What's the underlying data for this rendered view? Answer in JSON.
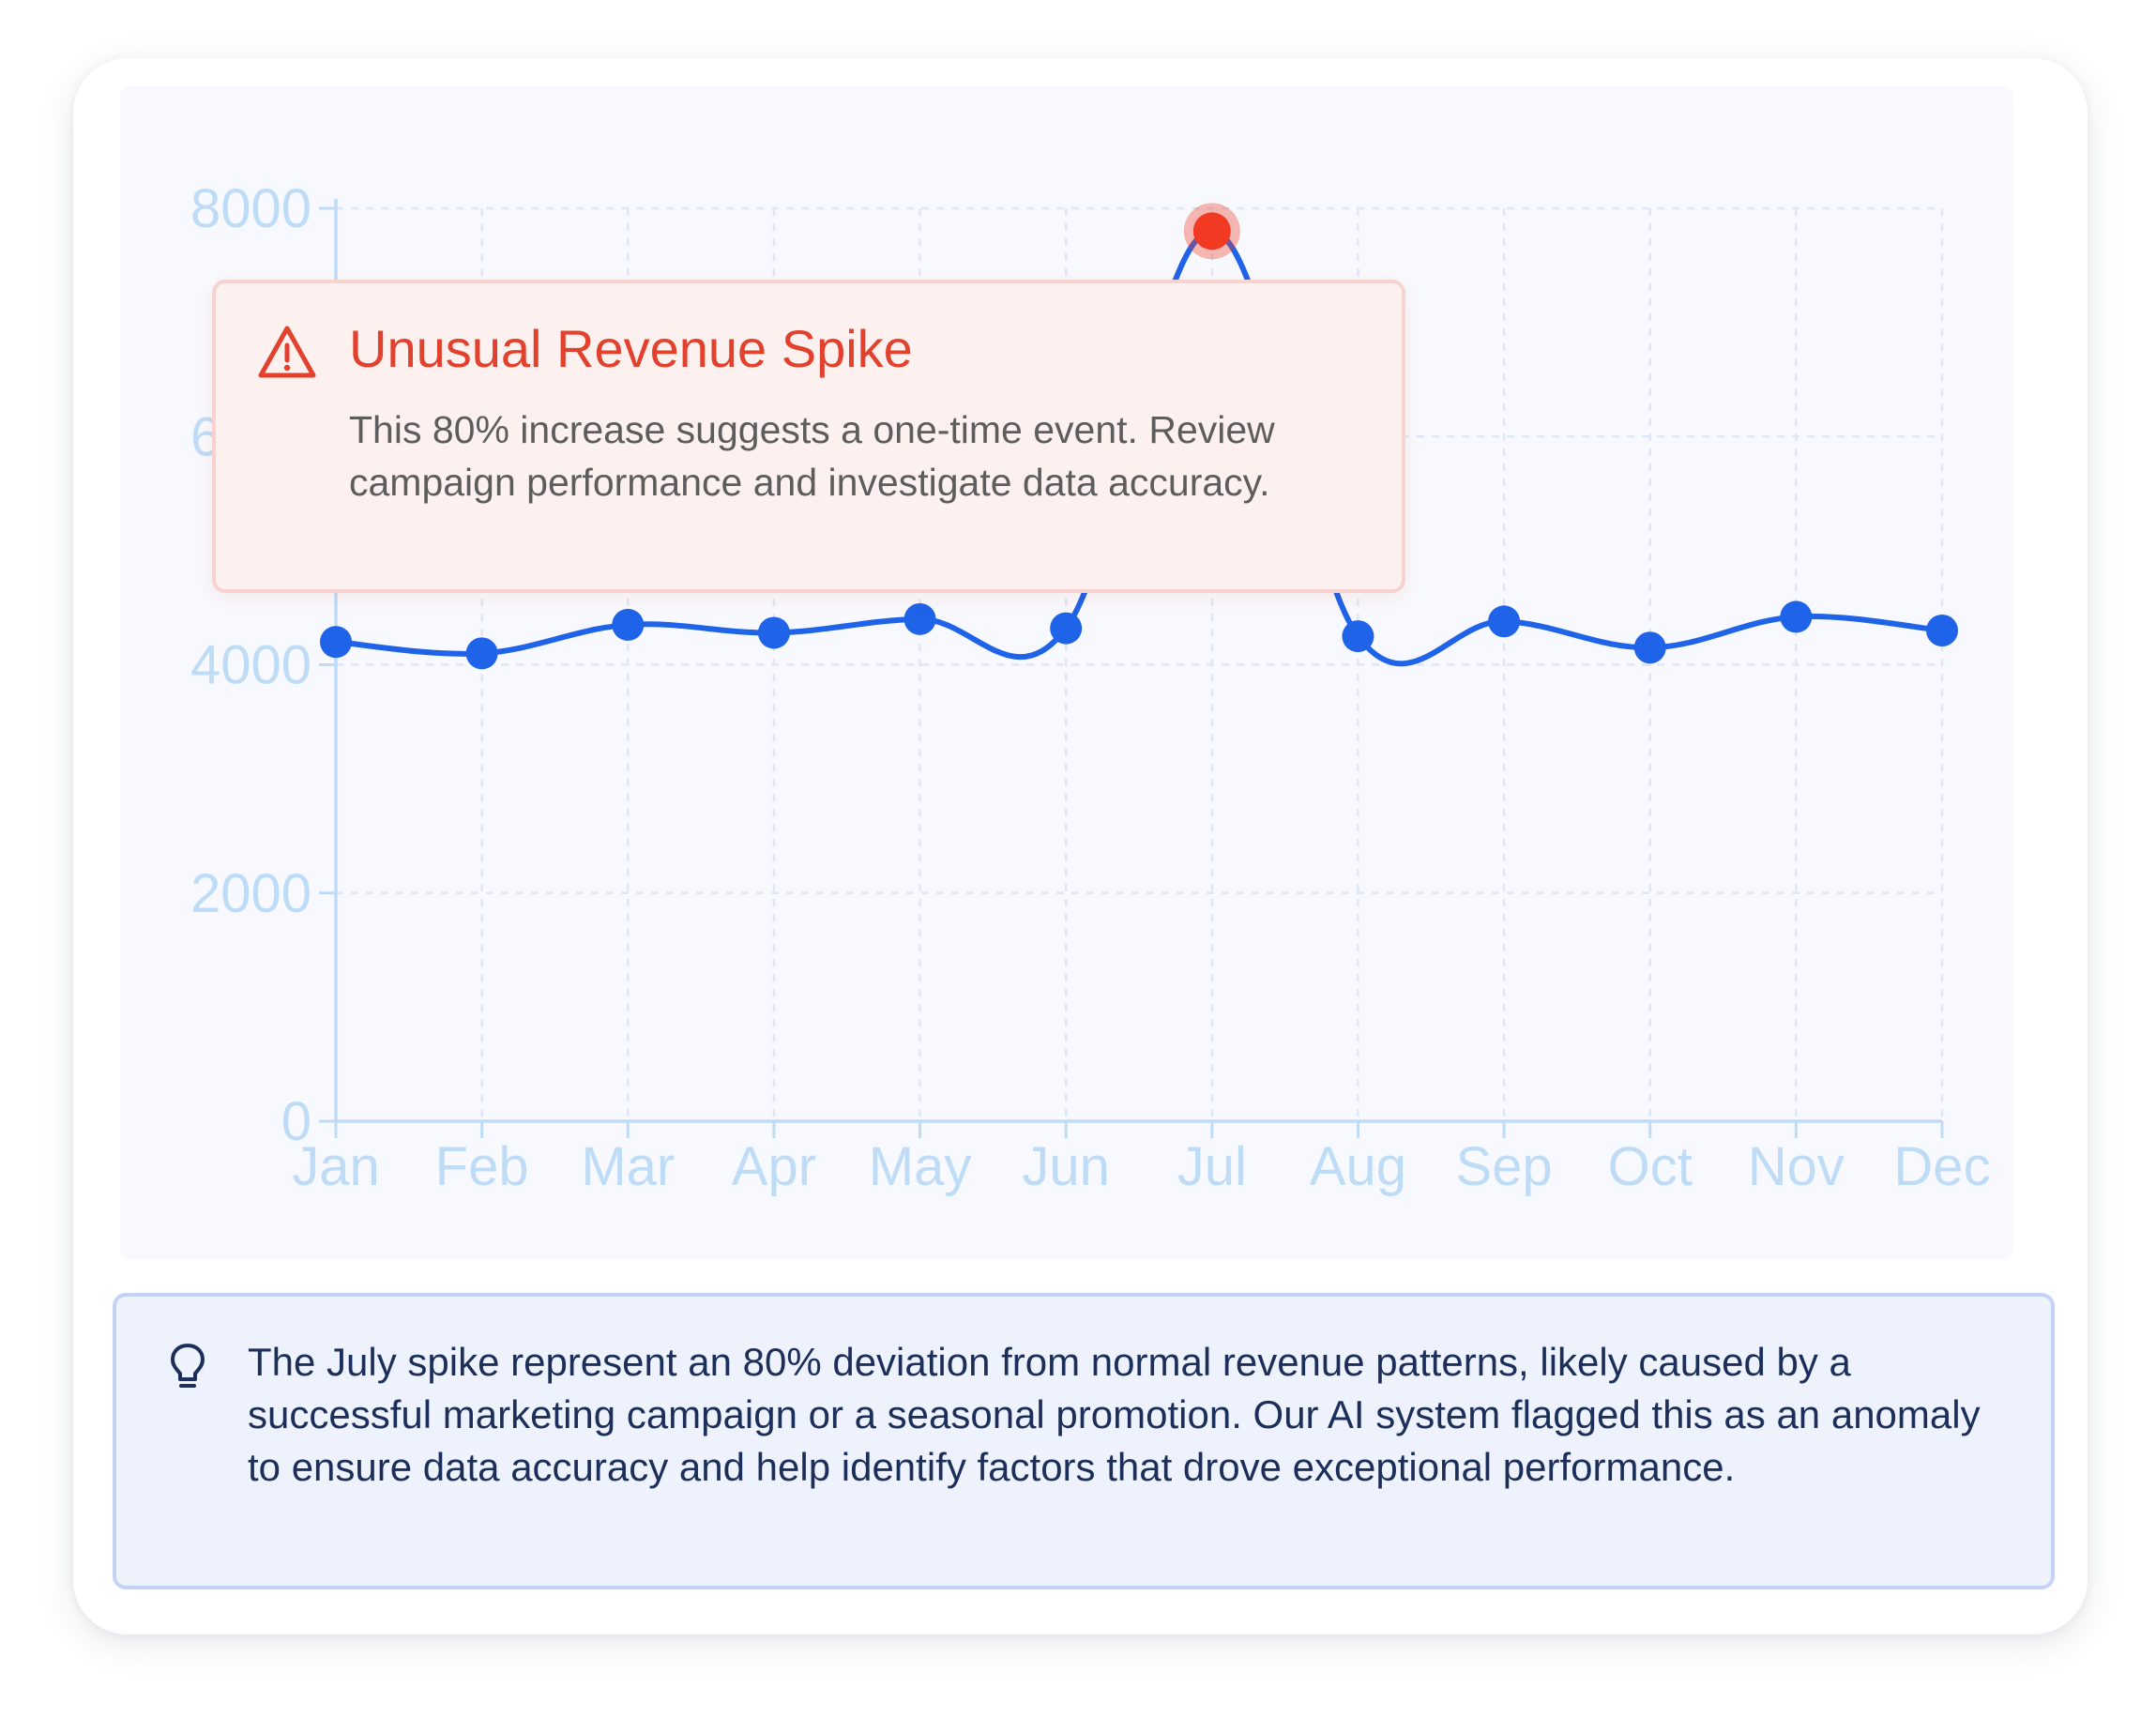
{
  "chart_data": {
    "type": "line",
    "categories": [
      "Jan",
      "Feb",
      "Mar",
      "Apr",
      "May",
      "Jun",
      "Jul",
      "Aug",
      "Sep",
      "Oct",
      "Nov",
      "Dec"
    ],
    "series": [
      {
        "values": [
          4200,
          4100,
          4350,
          4280,
          4400,
          4320,
          7800,
          4250,
          4380,
          4150,
          4420,
          4300
        ]
      }
    ],
    "yticks": [
      0,
      2000,
      4000,
      6000,
      8000
    ],
    "ylim": [
      0,
      8000
    ],
    "grid": true,
    "anomaly": {
      "category": "Jul",
      "value": 7800
    },
    "colors": {
      "line": "#1f63e8",
      "point": "#1f63e8",
      "anomaly": "#f23a23",
      "axis": "#bfdcf7",
      "tick_label": "#bfdcf7",
      "grid": "#dfe6f6"
    }
  },
  "tooltip": {
    "icon": "warning-triangle-icon",
    "title": "Unusual Revenue Spike",
    "body": "This 80% increase suggests a one-time event. Review campaign performance and investigate data accuracy.",
    "accent_color": "#e2412d"
  },
  "insight": {
    "icon": "lightbulb-icon",
    "text": "The July spike represent an 80% deviation from normal revenue patterns, likely caused by a successful marketing campaign or a seasonal promotion. Our AI system flagged this as an anomaly to ensure data accuracy and help identify factors that drove exceptional performance."
  }
}
